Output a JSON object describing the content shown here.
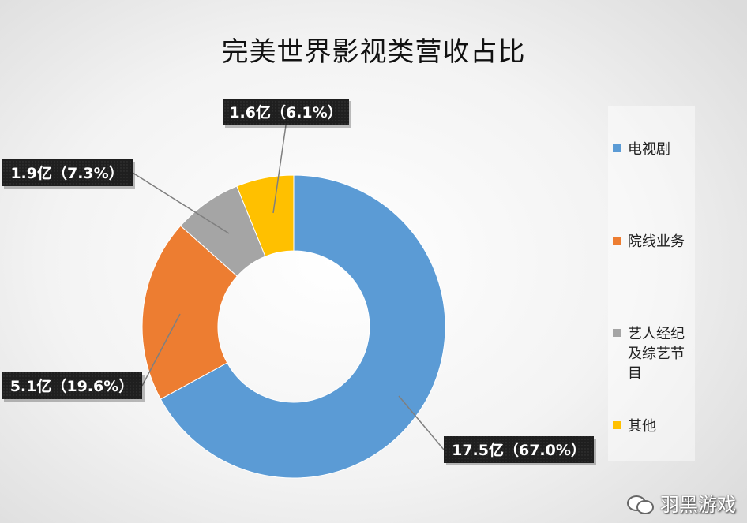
{
  "chart_data": {
    "type": "pie",
    "donut": true,
    "title": "完美世界影视类营收占比",
    "legend_position": "right",
    "slices": [
      {
        "name": "电视剧",
        "value": 17.5,
        "percent": 67.0,
        "label": "17.5亿（67.0%）",
        "color": "#5B9BD5"
      },
      {
        "name": "院线业务",
        "value": 5.1,
        "percent": 19.6,
        "label": "5.1亿（19.6%）",
        "color": "#ED7D31"
      },
      {
        "name": "艺人经纪及综艺节目",
        "value": 1.9,
        "percent": 7.3,
        "label": "1.9亿（7.3%）",
        "color": "#A5A5A5"
      },
      {
        "name": "其他",
        "value": 1.6,
        "percent": 6.1,
        "label": "1.6亿（6.1%）",
        "color": "#FFC000"
      }
    ]
  },
  "watermark": {
    "text": "羽黑游戏",
    "icon": "wechat-icon"
  }
}
